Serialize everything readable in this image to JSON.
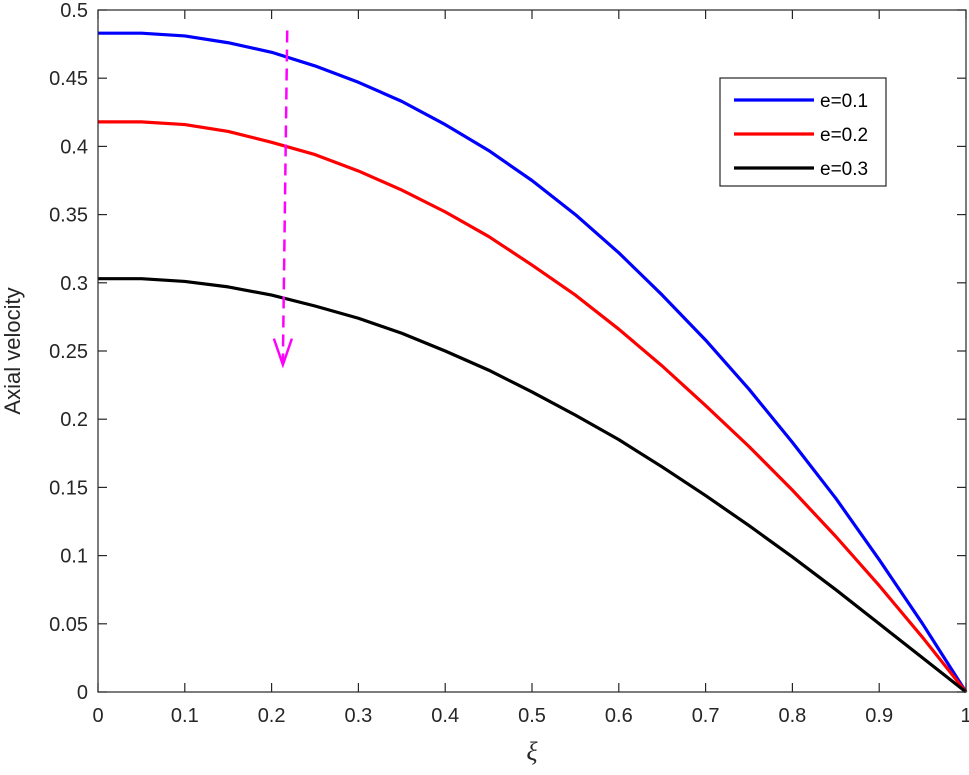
{
  "chart_data": {
    "type": "line",
    "title": "",
    "xlabel": "ξ",
    "ylabel": "Axial velocity",
    "xlim": [
      0,
      1
    ],
    "ylim": [
      0,
      0.5
    ],
    "xticks": [
      "0",
      "0.1",
      "0.2",
      "0.3",
      "0.4",
      "0.5",
      "0.6",
      "0.7",
      "0.8",
      "0.9",
      "1"
    ],
    "yticks": [
      "0",
      "0.05",
      "0.1",
      "0.15",
      "0.2",
      "0.25",
      "0.3",
      "0.35",
      "0.4",
      "0.45",
      "0.5"
    ],
    "grid": false,
    "legend_position": "top-right",
    "x": [
      0,
      0.05,
      0.1,
      0.15,
      0.2,
      0.25,
      0.3,
      0.35,
      0.4,
      0.45,
      0.5,
      0.55,
      0.6,
      0.65,
      0.7,
      0.75,
      0.8,
      0.85,
      0.9,
      0.95,
      1.0
    ],
    "series": [
      {
        "name": "e=0.1",
        "color": "#0000ff",
        "values": [
          0.483,
          0.483,
          0.481,
          0.476,
          0.469,
          0.459,
          0.447,
          0.433,
          0.416,
          0.397,
          0.375,
          0.35,
          0.322,
          0.291,
          0.258,
          0.222,
          0.183,
          0.142,
          0.097,
          0.05,
          0.0
        ]
      },
      {
        "name": "e=0.2",
        "color": "#ff0000",
        "values": [
          0.418,
          0.418,
          0.416,
          0.411,
          0.403,
          0.394,
          0.382,
          0.368,
          0.352,
          0.334,
          0.313,
          0.291,
          0.266,
          0.239,
          0.21,
          0.18,
          0.148,
          0.114,
          0.078,
          0.04,
          0.0
        ]
      },
      {
        "name": "e=0.3",
        "color": "#000000",
        "values": [
          0.303,
          0.303,
          0.301,
          0.297,
          0.291,
          0.283,
          0.274,
          0.263,
          0.25,
          0.236,
          0.22,
          0.203,
          0.185,
          0.165,
          0.144,
          0.122,
          0.099,
          0.075,
          0.05,
          0.025,
          0.0
        ]
      }
    ],
    "annotations": [
      {
        "type": "arrow",
        "style": "dashed",
        "color": "#ff00ff",
        "from": [
          0.218,
          0.485
        ],
        "to": [
          0.213,
          0.24
        ]
      }
    ]
  }
}
